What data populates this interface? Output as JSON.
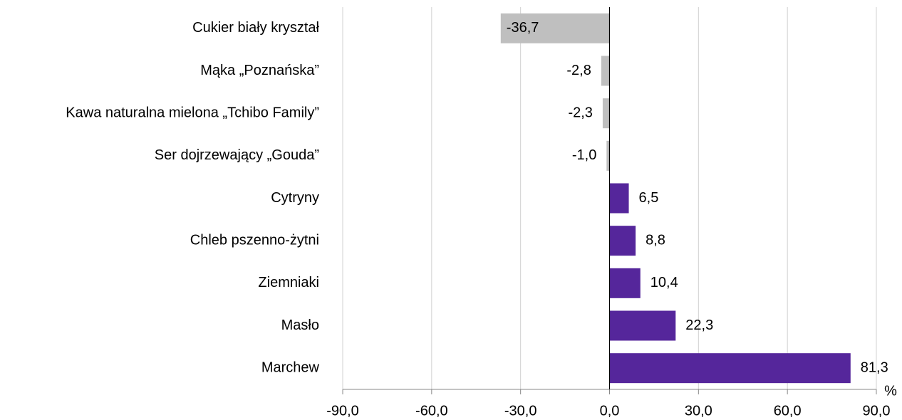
{
  "chart_data": {
    "type": "barh",
    "categories": [
      "Cukier biały kryształ",
      "Mąka „Poznańska”",
      "Kawa naturalna mielona „Tchibo Family”",
      "Ser dojrzewający „Gouda”",
      "Cytryny",
      "Chleb pszenno-żytni",
      "Ziemniaki",
      "Masło",
      "Marchew"
    ],
    "values": [
      -36.7,
      -2.8,
      -2.3,
      -1.0,
      6.5,
      8.8,
      10.4,
      22.3,
      81.3
    ],
    "value_labels": [
      "-36,7",
      "-2,8",
      "-2,3",
      "-1,0",
      "6,5",
      "8,8",
      "10,4",
      "22,3",
      "81,3"
    ],
    "colors": [
      "#bfbfbf",
      "#bfbfbf",
      "#bfbfbf",
      "#bfbfbf",
      "#55269b",
      "#55269b",
      "#55269b",
      "#55269b",
      "#55269b"
    ],
    "xlabel": "%",
    "xlim": [
      -90,
      90
    ],
    "xticks": [
      {
        "value": -90,
        "label": "-90,0"
      },
      {
        "value": -60,
        "label": "-60,0"
      },
      {
        "value": -30,
        "label": "-30,0"
      },
      {
        "value": 0,
        "label": "0,0"
      },
      {
        "value": 30,
        "label": "30,0"
      },
      {
        "value": 60,
        "label": "60,0"
      },
      {
        "value": 90,
        "label": "90,0"
      }
    ],
    "grid": true
  }
}
